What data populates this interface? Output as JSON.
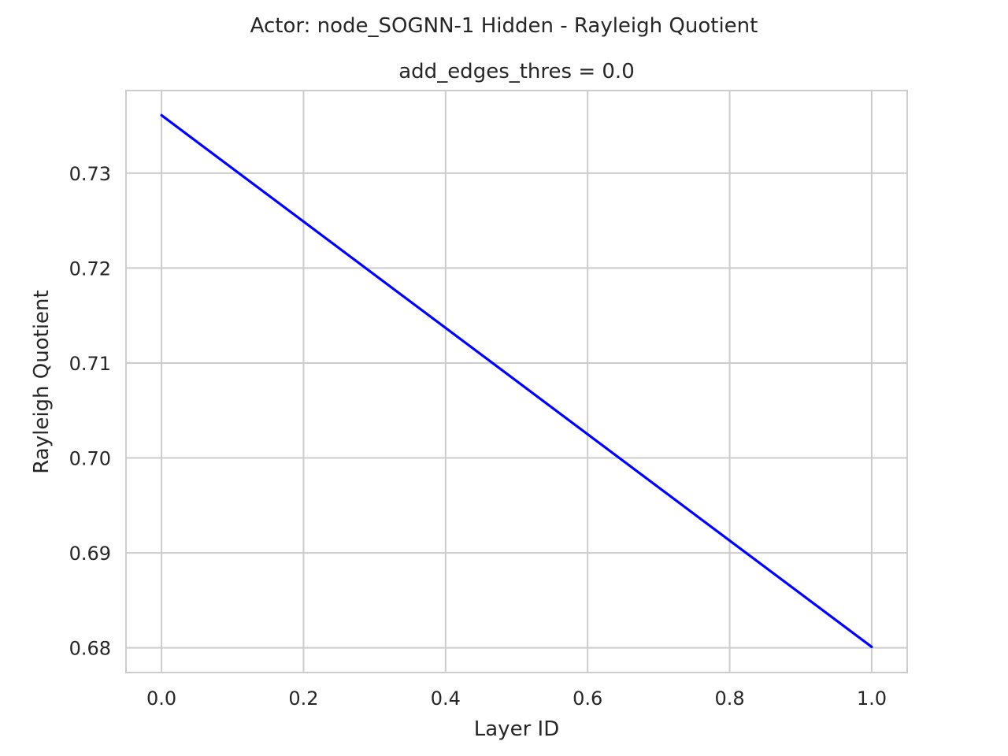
{
  "chart_data": {
    "type": "line",
    "suptitle": "Actor: node_SOGNN-1 Hidden - Rayleigh Quotient",
    "title": "add_edges_thres = 0.0",
    "xlabel": "Layer ID",
    "ylabel": "Rayleigh Quotient",
    "xlim": [
      -0.05,
      1.05
    ],
    "ylim": [
      0.6774,
      0.7387
    ],
    "xticks": [
      0.0,
      0.2,
      0.4,
      0.6,
      0.8,
      1.0
    ],
    "xtick_labels": [
      "0.0",
      "0.2",
      "0.4",
      "0.6",
      "0.8",
      "1.0"
    ],
    "yticks": [
      0.68,
      0.69,
      0.7,
      0.71,
      0.72,
      0.73
    ],
    "ytick_labels": [
      "0.68",
      "0.69",
      "0.70",
      "0.71",
      "0.72",
      "0.73"
    ],
    "grid": true,
    "series": [
      {
        "x": [
          0.0,
          1.0
        ],
        "y": [
          0.7361,
          0.6801
        ],
        "color": "#0000ff"
      }
    ]
  }
}
